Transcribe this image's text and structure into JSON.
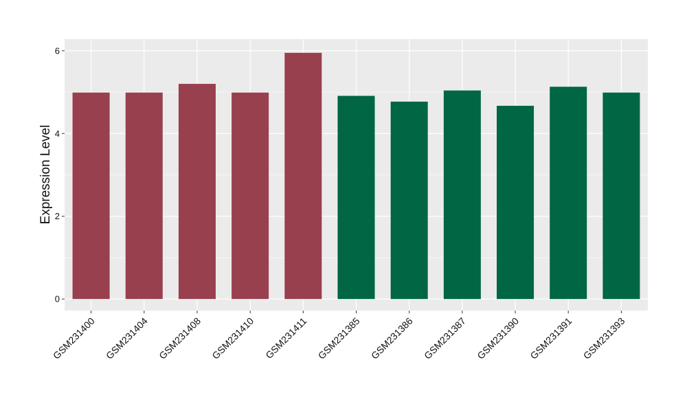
{
  "chart_data": {
    "type": "bar",
    "title": "",
    "xlabel": "",
    "ylabel": "Expression Level",
    "ylim": [
      -0.28,
      6.28
    ],
    "y_ticks": [
      0,
      2,
      4,
      6
    ],
    "grid": true,
    "legend": "none",
    "categories": [
      "GSM231400",
      "GSM231404",
      "GSM231408",
      "GSM231410",
      "GSM231411",
      "GSM231385",
      "GSM231386",
      "GSM231387",
      "GSM231390",
      "GSM231391",
      "GSM231393"
    ],
    "values": [
      4.99,
      4.99,
      5.2,
      4.99,
      5.95,
      4.91,
      4.77,
      5.04,
      4.67,
      5.13,
      4.99
    ],
    "bar_colors": [
      "#99404e",
      "#99404e",
      "#99404e",
      "#99404e",
      "#99404e",
      "#006644",
      "#006644",
      "#006644",
      "#006644",
      "#006644",
      "#006644"
    ]
  },
  "colors": {
    "panel_background": "#ebebeb",
    "gridline": "#ffffff",
    "group_a": "#99404e",
    "group_b": "#006644"
  }
}
